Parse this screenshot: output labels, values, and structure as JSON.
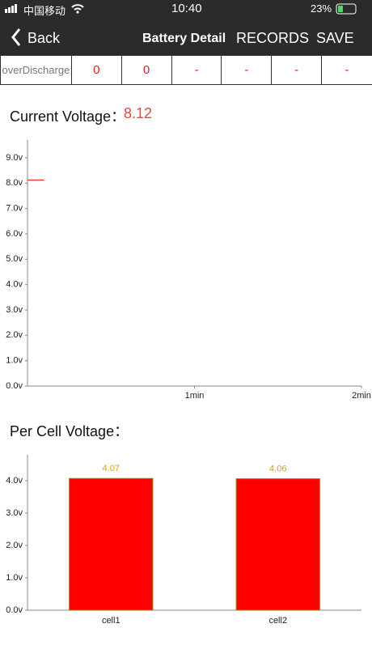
{
  "status_bar": {
    "carrier": "中国移动",
    "time": "10:40",
    "battery": "23%"
  },
  "nav": {
    "back": "Back",
    "title": "Battery Detail",
    "actions": [
      "RECORDS",
      "SAVE"
    ]
  },
  "table": {
    "rows": [
      [
        "overDischarge",
        "0",
        "0",
        "-",
        "-",
        "-",
        "-"
      ]
    ]
  },
  "current_voltage": {
    "label": "Current Voltage：",
    "value": "8.12"
  },
  "per_cell_label": "Per Cell Voltage：",
  "chart_data": [
    {
      "type": "line",
      "xlim": [
        0,
        2
      ],
      "xticks": [
        {
          "value": 1,
          "label": "1min"
        },
        {
          "value": 2,
          "label": "2min"
        }
      ],
      "ylim": [
        0,
        9.7
      ],
      "yticks": [
        {
          "value": 0,
          "label": "0.0v"
        },
        {
          "value": 1,
          "label": "1.0v"
        },
        {
          "value": 2,
          "label": "2.0v"
        },
        {
          "value": 3,
          "label": "3.0v"
        },
        {
          "value": 4,
          "label": "4.0v"
        },
        {
          "value": 5,
          "label": "5.0v"
        },
        {
          "value": 6,
          "label": "6.0v"
        },
        {
          "value": 7,
          "label": "7.0v"
        },
        {
          "value": 8,
          "label": "8.0v"
        },
        {
          "value": 9,
          "label": "9.0v"
        }
      ],
      "series": [
        {
          "color": "#e8453c",
          "x": [
            0,
            0.1
          ],
          "values": [
            8.12,
            8.12
          ]
        }
      ]
    },
    {
      "type": "bar",
      "categories": [
        "cell1",
        "cell2"
      ],
      "values": [
        4.07,
        4.06
      ],
      "color": "#ff0000",
      "label_color": "#e8961e",
      "ylim": [
        0,
        4.8
      ],
      "yticks": [
        {
          "value": 0,
          "label": "0.0v"
        },
        {
          "value": 1,
          "label": "1.0v"
        },
        {
          "value": 2,
          "label": "2.0v"
        },
        {
          "value": 3,
          "label": "3.0v"
        },
        {
          "value": 4,
          "label": "4.0v"
        }
      ]
    }
  ]
}
